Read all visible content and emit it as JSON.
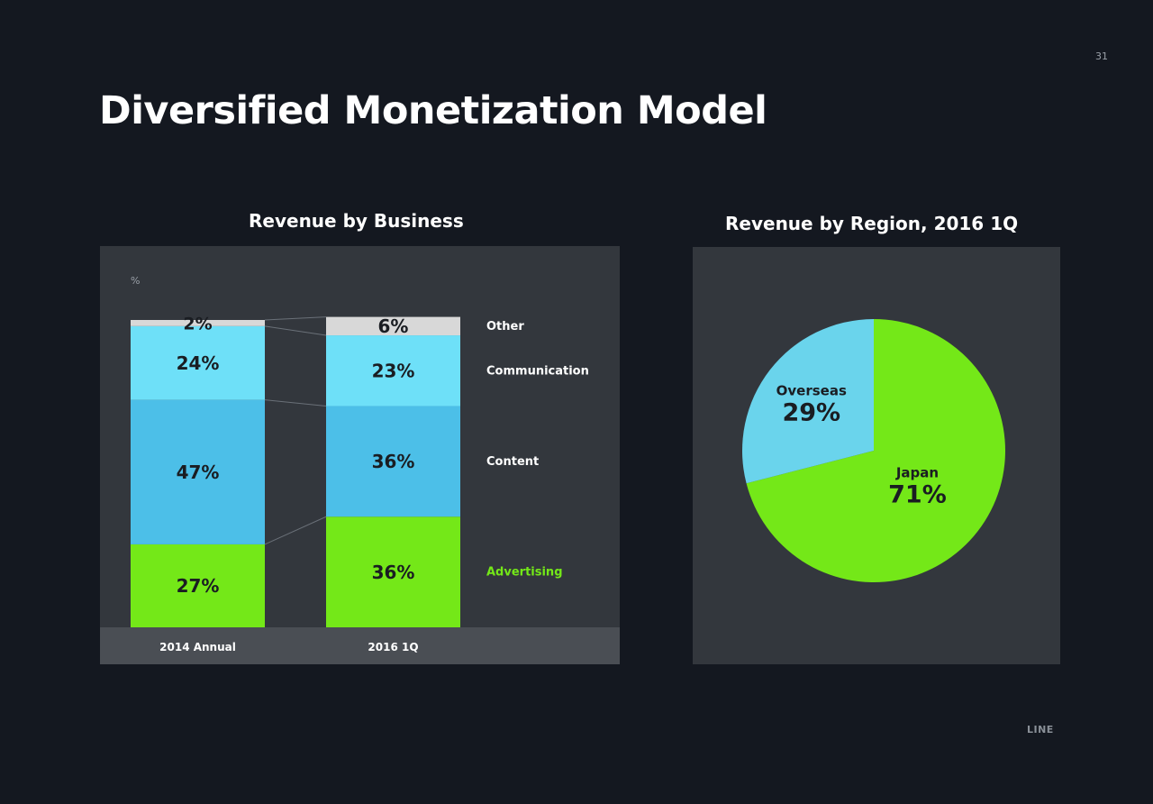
{
  "page_number": "31",
  "title": "Diversified Monetization Model",
  "logo": "LINE",
  "colors": {
    "background": "#141820",
    "panel": "#33373d",
    "axis_band": "#4a4e54",
    "Other": "#d8d8d8",
    "Communication": "#6ee0f8",
    "Content": "#4cbfe8",
    "Advertising": "#74e818",
    "Japan": "#74e818",
    "Overseas": "#6ad4ec"
  },
  "chart_data": [
    {
      "type": "bar",
      "stacked": true,
      "title": "Revenue by Business",
      "unit_label": "%",
      "categories": [
        "2014 Annual",
        "2016 1Q"
      ],
      "series": [
        {
          "name": "Advertising",
          "values": [
            27,
            36
          ],
          "labels": [
            "27%",
            "36%"
          ]
        },
        {
          "name": "Content",
          "values": [
            47,
            36
          ],
          "labels": [
            "47%",
            "36%"
          ]
        },
        {
          "name": "Communication",
          "values": [
            24,
            23
          ],
          "labels": [
            "24%",
            "23%"
          ]
        },
        {
          "name": "Other",
          "values": [
            2,
            6
          ],
          "labels": [
            "2%",
            "6%"
          ]
        }
      ],
      "ylim": [
        0,
        100
      ],
      "grid": false,
      "legend": "right"
    },
    {
      "type": "pie",
      "title": "Revenue by Region, 2016 1Q",
      "slices": [
        {
          "name": "Japan",
          "value": 71,
          "label": "71%"
        },
        {
          "name": "Overseas",
          "value": 29,
          "label": "29%"
        }
      ]
    }
  ]
}
